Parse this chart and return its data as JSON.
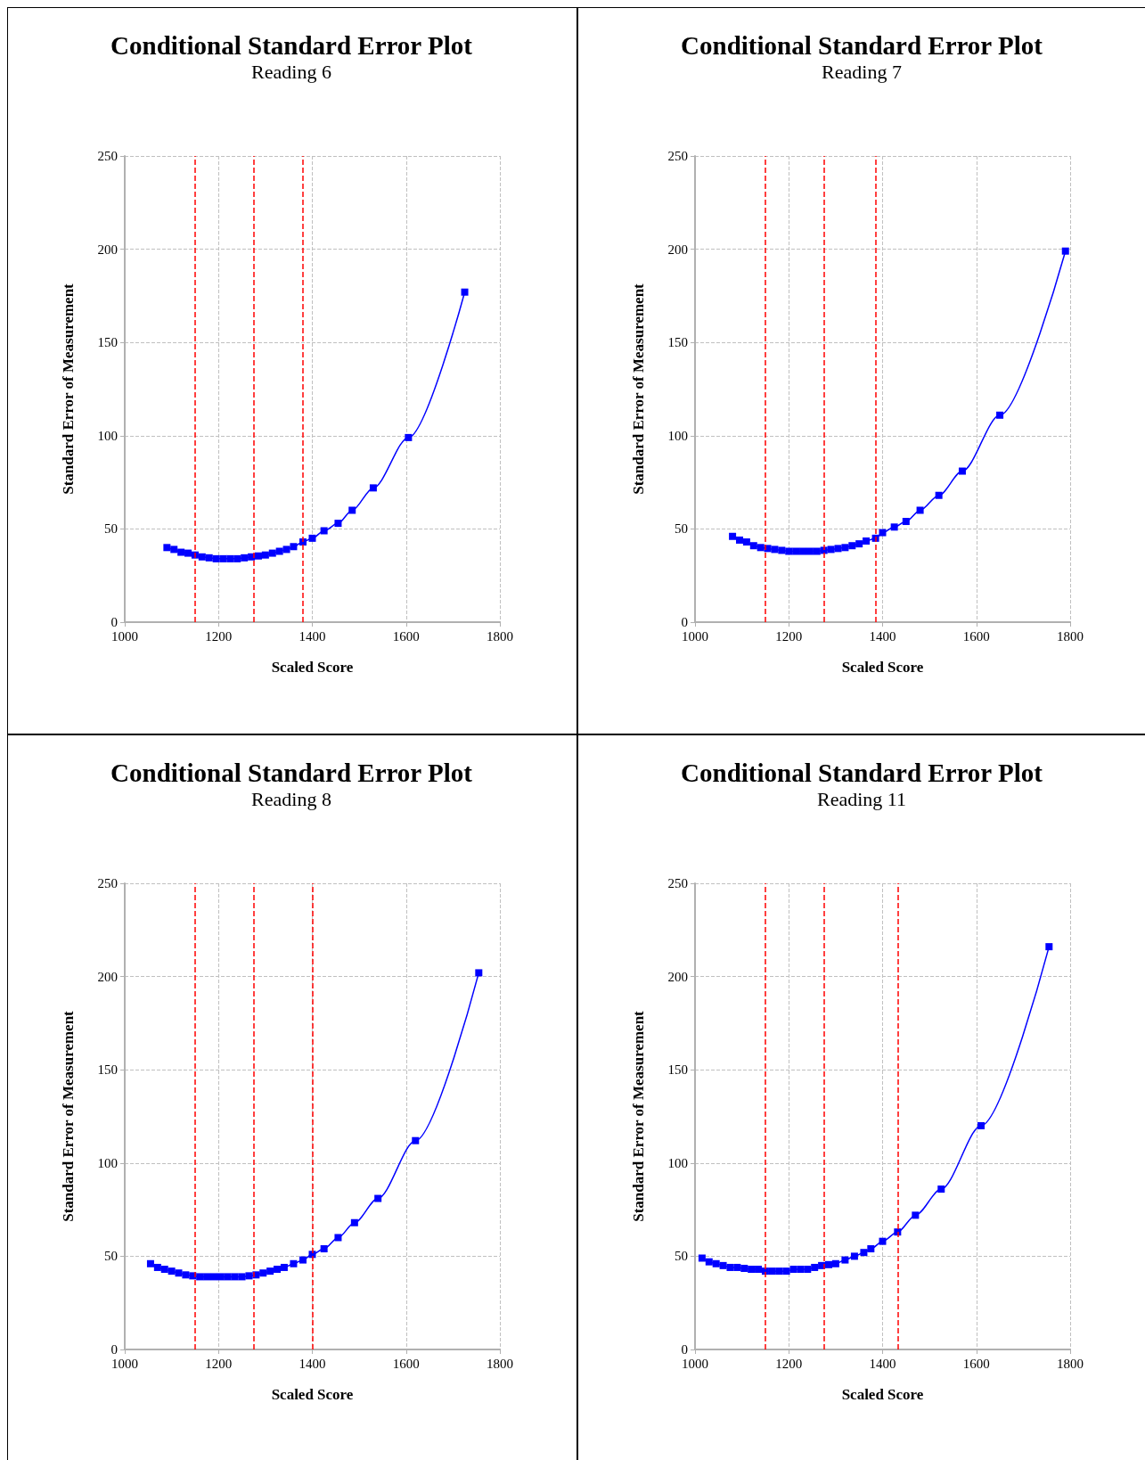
{
  "chart_data": [
    {
      "type": "line",
      "title": "Conditional Standard Error Plot",
      "subtitle": "Reading 6",
      "xlabel": "Scaled Score",
      "ylabel": "Standard Error of Measurement",
      "x": [
        1090,
        1105,
        1120,
        1135,
        1150,
        1165,
        1180,
        1195,
        1210,
        1225,
        1240,
        1255,
        1270,
        1285,
        1300,
        1315,
        1330,
        1345,
        1360,
        1380,
        1400,
        1425,
        1455,
        1485,
        1530,
        1605,
        1725
      ],
      "series": [
        {
          "color": "#0000ff",
          "values": [
            40,
            39,
            37.5,
            37,
            36,
            35,
            34.5,
            34,
            34,
            34,
            34,
            34.5,
            35,
            35.5,
            36,
            37,
            38,
            39,
            40.5,
            43,
            45,
            49,
            53,
            60,
            72,
            99,
            177
          ]
        }
      ],
      "xlim": [
        1000,
        1800
      ],
      "xticks": [
        1000,
        1200,
        1400,
        1600,
        1800
      ],
      "ylim": [
        0,
        250
      ],
      "yticks": [
        0,
        50,
        100,
        150,
        200,
        250
      ],
      "grid": true,
      "marker": "square",
      "ref_lines": [
        {
          "axis": "x",
          "value": 1150,
          "color": "#ff0000",
          "line_style": "dashed"
        },
        {
          "axis": "x",
          "value": 1275,
          "color": "#ff0000",
          "line_style": "dashed"
        },
        {
          "axis": "x",
          "value": 1380,
          "color": "#ff0000",
          "line_style": "dashed"
        }
      ]
    },
    {
      "type": "line",
      "title": "Conditional Standard Error Plot",
      "subtitle": "Reading 7",
      "xlabel": "Scaled Score",
      "ylabel": "Standard Error of Measurement",
      "x": [
        1080,
        1095,
        1110,
        1125,
        1140,
        1155,
        1170,
        1185,
        1200,
        1215,
        1230,
        1245,
        1260,
        1275,
        1290,
        1305,
        1320,
        1335,
        1350,
        1365,
        1385,
        1400,
        1425,
        1450,
        1480,
        1520,
        1570,
        1650,
        1790
      ],
      "series": [
        {
          "color": "#0000ff",
          "values": [
            46,
            44,
            43,
            41,
            40,
            39.5,
            39,
            38.5,
            38,
            38,
            38,
            38,
            38,
            38.5,
            39,
            39.5,
            40,
            41,
            42,
            43.5,
            45,
            48,
            51,
            54,
            60,
            68,
            81,
            111,
            199
          ]
        }
      ],
      "xlim": [
        1000,
        1800
      ],
      "xticks": [
        1000,
        1200,
        1400,
        1600,
        1800
      ],
      "ylim": [
        0,
        250
      ],
      "yticks": [
        0,
        50,
        100,
        150,
        200,
        250
      ],
      "grid": true,
      "marker": "square",
      "ref_lines": [
        {
          "axis": "x",
          "value": 1150,
          "color": "#ff0000",
          "line_style": "dashed"
        },
        {
          "axis": "x",
          "value": 1275,
          "color": "#ff0000",
          "line_style": "dashed"
        },
        {
          "axis": "x",
          "value": 1385,
          "color": "#ff0000",
          "line_style": "dashed"
        }
      ]
    },
    {
      "type": "line",
      "title": "Conditional Standard Error Plot",
      "subtitle": "Reading 8",
      "xlabel": "Scaled Score",
      "ylabel": "Standard Error of Measurement",
      "x": [
        1055,
        1070,
        1085,
        1100,
        1115,
        1130,
        1145,
        1160,
        1175,
        1190,
        1205,
        1220,
        1235,
        1250,
        1265,
        1280,
        1295,
        1310,
        1325,
        1340,
        1360,
        1380,
        1400,
        1425,
        1455,
        1490,
        1540,
        1620,
        1755
      ],
      "series": [
        {
          "color": "#0000ff",
          "values": [
            46,
            44,
            43,
            42,
            41,
            40,
            39.5,
            39,
            39,
            39,
            39,
            39,
            39,
            39,
            39.5,
            40,
            41,
            42,
            43,
            44,
            46,
            48,
            51,
            54,
            60,
            68,
            81,
            112,
            202
          ]
        }
      ],
      "xlim": [
        1000,
        1800
      ],
      "xticks": [
        1000,
        1200,
        1400,
        1600,
        1800
      ],
      "ylim": [
        0,
        250
      ],
      "yticks": [
        0,
        50,
        100,
        150,
        200,
        250
      ],
      "grid": true,
      "marker": "square",
      "ref_lines": [
        {
          "axis": "x",
          "value": 1150,
          "color": "#ff0000",
          "line_style": "dashed"
        },
        {
          "axis": "x",
          "value": 1275,
          "color": "#ff0000",
          "line_style": "dashed"
        },
        {
          "axis": "x",
          "value": 1400,
          "color": "#ff0000",
          "line_style": "dashed"
        }
      ]
    },
    {
      "type": "line",
      "title": "Conditional Standard Error Plot",
      "subtitle": "Reading 11",
      "xlabel": "Scaled Score",
      "ylabel": "Standard Error of Measurement",
      "x": [
        1015,
        1030,
        1045,
        1060,
        1075,
        1090,
        1105,
        1120,
        1135,
        1150,
        1165,
        1180,
        1195,
        1210,
        1225,
        1240,
        1255,
        1270,
        1285,
        1300,
        1320,
        1340,
        1360,
        1375,
        1400,
        1432,
        1470,
        1525,
        1610,
        1755
      ],
      "series": [
        {
          "color": "#0000ff",
          "values": [
            49,
            47,
            46,
            45,
            44,
            44,
            43.5,
            43,
            43,
            42,
            42,
            42,
            42,
            43,
            43,
            43,
            44,
            45,
            45.5,
            46,
            48,
            50,
            52,
            54,
            58,
            63,
            72,
            86,
            120,
            216
          ]
        }
      ],
      "xlim": [
        1000,
        1800
      ],
      "xticks": [
        1000,
        1200,
        1400,
        1600,
        1800
      ],
      "ylim": [
        0,
        250
      ],
      "yticks": [
        0,
        50,
        100,
        150,
        200,
        250
      ],
      "grid": true,
      "marker": "square",
      "ref_lines": [
        {
          "axis": "x",
          "value": 1150,
          "color": "#ff0000",
          "line_style": "dashed"
        },
        {
          "axis": "x",
          "value": 1275,
          "color": "#ff0000",
          "line_style": "dashed"
        },
        {
          "axis": "x",
          "value": 1432,
          "color": "#ff0000",
          "line_style": "dashed"
        }
      ]
    }
  ]
}
